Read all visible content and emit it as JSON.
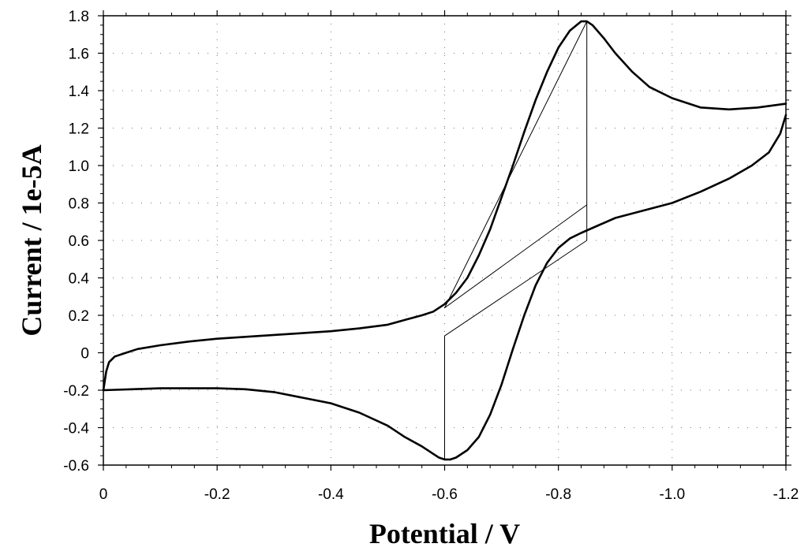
{
  "chart_data": {
    "type": "line",
    "title": "",
    "xlabel": "Potential / V",
    "ylabel": "Current / 1e-5A",
    "xlim": [
      0,
      -1.2
    ],
    "ylim": [
      -0.6,
      1.8
    ],
    "grid": true,
    "x_ticks": [
      0,
      -0.2,
      -0.4,
      -0.6,
      -0.8,
      -1.0,
      -1.2
    ],
    "x_tick_labels": [
      "0",
      "-0.2",
      "-0.4",
      "-0.6",
      "-0.8",
      "-1.0",
      "-1.2"
    ],
    "y_ticks": [
      -0.6,
      -0.4,
      -0.2,
      0,
      0.2,
      0.4,
      0.6,
      0.8,
      1.0,
      1.2,
      1.4,
      1.6,
      1.8
    ],
    "y_tick_labels": [
      "-0.6",
      "-0.4",
      "-0.2",
      "0",
      "0.2",
      "0.4",
      "0.6",
      "0.8",
      "1.0",
      "1.2",
      "1.4",
      "1.6",
      "1.8"
    ],
    "series": [
      {
        "style": "thick",
        "x": [
          0,
          -0.005,
          -0.01,
          -0.02,
          -0.04,
          -0.06,
          -0.1,
          -0.15,
          -0.2,
          -0.25,
          -0.3,
          -0.35,
          -0.4,
          -0.45,
          -0.5,
          -0.53,
          -0.56,
          -0.58,
          -0.6,
          -0.62,
          -0.64,
          -0.66,
          -0.68,
          -0.7,
          -0.72,
          -0.74,
          -0.76,
          -0.78,
          -0.8,
          -0.82,
          -0.84,
          -0.85,
          -0.86,
          -0.88,
          -0.9,
          -0.93,
          -0.96,
          -1.0,
          -1.05,
          -1.1,
          -1.15,
          -1.2
        ],
        "y": [
          -0.2,
          -0.1,
          -0.05,
          -0.02,
          0.0,
          0.02,
          0.04,
          0.06,
          0.075,
          0.085,
          0.095,
          0.105,
          0.115,
          0.13,
          0.15,
          0.175,
          0.2,
          0.22,
          0.26,
          0.32,
          0.4,
          0.52,
          0.66,
          0.83,
          1.0,
          1.18,
          1.35,
          1.5,
          1.63,
          1.72,
          1.77,
          1.77,
          1.75,
          1.68,
          1.6,
          1.5,
          1.42,
          1.36,
          1.31,
          1.3,
          1.31,
          1.33
        ]
      },
      {
        "style": "thick",
        "x": [
          -1.2,
          -1.19,
          -1.17,
          -1.14,
          -1.1,
          -1.05,
          -1.0,
          -0.95,
          -0.9,
          -0.87,
          -0.84,
          -0.82,
          -0.8,
          -0.78,
          -0.76,
          -0.74,
          -0.72,
          -0.7,
          -0.68,
          -0.66,
          -0.64,
          -0.62,
          -0.61,
          -0.6,
          -0.59,
          -0.58,
          -0.56,
          -0.53,
          -0.5,
          -0.45,
          -0.4,
          -0.35,
          -0.3,
          -0.25,
          -0.2,
          -0.15,
          -0.1,
          -0.05,
          0
        ],
        "y": [
          1.27,
          1.17,
          1.07,
          1.0,
          0.93,
          0.86,
          0.8,
          0.76,
          0.72,
          0.68,
          0.64,
          0.61,
          0.56,
          0.48,
          0.36,
          0.2,
          0.02,
          -0.17,
          -0.33,
          -0.45,
          -0.52,
          -0.56,
          -0.57,
          -0.57,
          -0.56,
          -0.54,
          -0.5,
          -0.45,
          -0.39,
          -0.32,
          -0.27,
          -0.24,
          -0.21,
          -0.195,
          -0.19,
          -0.19,
          -0.19,
          -0.195,
          -0.2
        ]
      },
      {
        "style": "thin",
        "x": [
          -0.6,
          -0.6,
          -0.85,
          -0.85,
          -0.6,
          -0.6
        ],
        "y": [
          -0.57,
          0.09,
          0.6,
          1.77,
          0.24,
          0.24
        ]
      },
      {
        "style": "thin",
        "x": [
          -0.6,
          -0.85
        ],
        "y": [
          0.24,
          0.79
        ]
      }
    ]
  }
}
